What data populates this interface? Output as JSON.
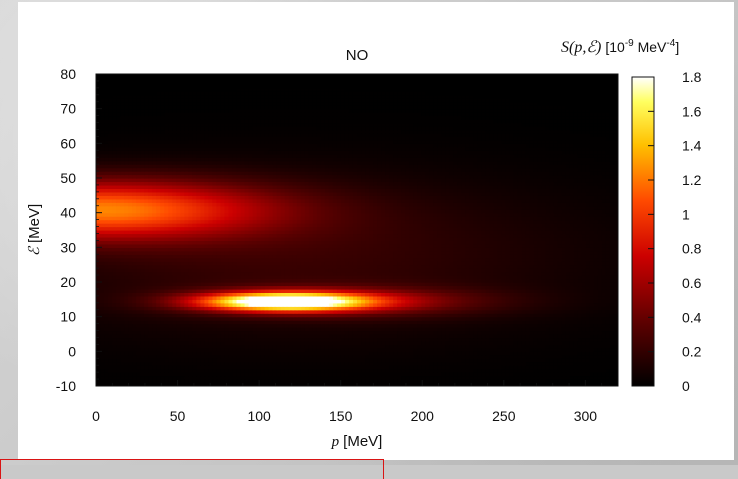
{
  "chart_data": {
    "type": "heatmap",
    "title": "NO",
    "xlabel_symbol": "p",
    "xlabel_unit": "[MeV]",
    "ylabel_symbol": "ℰ",
    "ylabel_unit": "[MeV]",
    "xlim": [
      0,
      320
    ],
    "ylim": [
      -10,
      80
    ],
    "x_ticks": [
      0,
      50,
      100,
      150,
      200,
      250,
      300
    ],
    "y_ticks": [
      -10,
      0,
      10,
      20,
      30,
      40,
      50,
      60,
      70,
      80
    ],
    "colorbar": {
      "label_symbol": "S(p,ℰ)",
      "label_unit_prefix": "[10",
      "label_unit_exp": "-9",
      "label_unit_mid": " MeV",
      "label_unit_exp2": "-4",
      "label_unit_suffix": "]",
      "range": [
        0,
        1.8
      ],
      "ticks": [
        "1.8",
        "1.6",
        "1.4",
        "1.2",
        "1",
        "0.8",
        "0.6",
        "0.4",
        "0.2",
        "0"
      ]
    },
    "features": [
      {
        "name": "upper lobe",
        "x_center": 10,
        "y_center": 41,
        "peak": 1.15
      },
      {
        "name": "lower ridge",
        "x_center": 115,
        "y_center": 14.5,
        "peak": 1.8
      }
    ]
  }
}
